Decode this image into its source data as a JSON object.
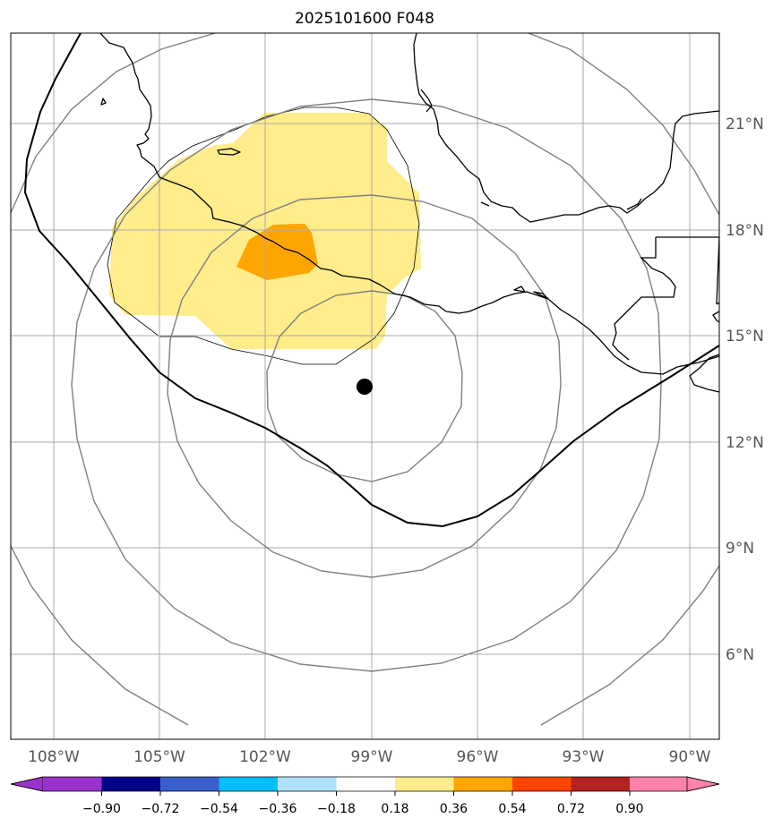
{
  "title": "2025101600 F048",
  "map": {
    "lon_labels": [
      {
        "text": "108°W",
        "lon": -108
      },
      {
        "text": "105°W",
        "lon": -105
      },
      {
        "text": "102°W",
        "lon": -102
      },
      {
        "text": "99°W",
        "lon": -99
      },
      {
        "text": "96°W",
        "lon": -96
      },
      {
        "text": "93°W",
        "lon": -93
      },
      {
        "text": "90°W",
        "lon": -90
      }
    ],
    "lat_labels": [
      {
        "text": "21°N",
        "lat": 21
      },
      {
        "text": "18°N",
        "lat": 18
      },
      {
        "text": "15°N",
        "lat": 15
      },
      {
        "text": "12°N",
        "lat": 12
      },
      {
        "text": "9°N",
        "lat": 9
      },
      {
        "text": "6°N",
        "lat": 6
      }
    ],
    "storm_center": {
      "lon": -99.2,
      "lat": 13.5
    }
  },
  "colorbar": {
    "ticks": [
      "−0.90",
      "−0.72",
      "−0.54",
      "−0.36",
      "−0.18",
      "0.18",
      "0.36",
      "0.54",
      "0.72",
      "0.90"
    ],
    "colors": [
      "#9932cc",
      "#00008b",
      "#3a5fcd",
      "#00bfff",
      "#b0e2ff",
      "#ffffff",
      "#ffec8b",
      "#ffa500",
      "#ff4500",
      "#b22222",
      "#ff82ab"
    ]
  }
}
